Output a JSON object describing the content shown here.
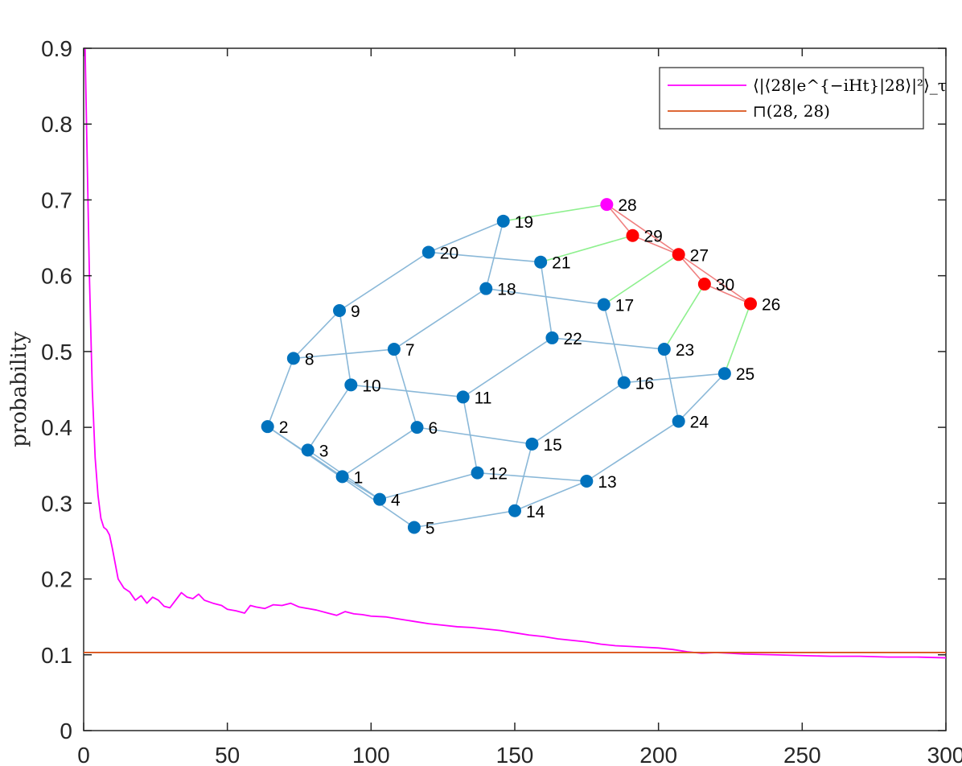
{
  "chart_data": {
    "type": "line",
    "title": "",
    "xlabel": "",
    "ylabel": "probability",
    "xlim": [
      0,
      300
    ],
    "ylim": [
      0,
      0.9
    ],
    "xticks": [
      "0",
      "50",
      "100",
      "150",
      "200",
      "250",
      "300"
    ],
    "yticks": [
      "0",
      "0.1",
      "0.2",
      "0.3",
      "0.4",
      "0.5",
      "0.6",
      "0.7",
      "0.8",
      "0.9"
    ],
    "grid": false,
    "legend_position": "top-right",
    "series": [
      {
        "name": "⟨|⟨28|e^{−iHt}|28⟩|²⟩_τ",
        "color": "#ff00ff",
        "x": [
          0.5,
          1,
          2,
          3,
          4,
          5,
          6,
          7,
          8,
          9,
          10,
          12,
          14,
          16,
          18,
          20,
          22,
          24,
          26,
          28,
          30,
          32,
          34,
          36,
          38,
          40,
          42,
          45,
          48,
          50,
          53,
          56,
          58,
          60,
          63,
          66,
          69,
          72,
          75,
          78,
          81,
          85,
          88,
          91,
          94,
          97,
          100,
          105,
          110,
          115,
          120,
          125,
          130,
          135,
          140,
          145,
          150,
          155,
          160,
          165,
          170,
          175,
          180,
          185,
          190,
          195,
          200,
          205,
          210,
          215,
          220,
          225,
          230,
          240,
          250,
          260,
          270,
          280,
          290,
          300
        ],
        "y": [
          0.9,
          0.8,
          0.6,
          0.45,
          0.36,
          0.31,
          0.28,
          0.268,
          0.265,
          0.258,
          0.24,
          0.2,
          0.188,
          0.183,
          0.172,
          0.178,
          0.168,
          0.176,
          0.172,
          0.164,
          0.162,
          0.172,
          0.182,
          0.176,
          0.174,
          0.18,
          0.172,
          0.168,
          0.165,
          0.16,
          0.158,
          0.155,
          0.165,
          0.163,
          0.161,
          0.166,
          0.165,
          0.168,
          0.163,
          0.161,
          0.159,
          0.155,
          0.152,
          0.157,
          0.154,
          0.153,
          0.151,
          0.15,
          0.147,
          0.144,
          0.141,
          0.139,
          0.137,
          0.136,
          0.134,
          0.132,
          0.129,
          0.126,
          0.124,
          0.121,
          0.119,
          0.117,
          0.114,
          0.112,
          0.111,
          0.11,
          0.109,
          0.107,
          0.104,
          0.102,
          0.103,
          0.102,
          0.101,
          0.1,
          0.099,
          0.098,
          0.098,
          0.097,
          0.097,
          0.096
        ]
      },
      {
        "name": "⊓(28, 28)",
        "color": "#d95319",
        "x": [
          0,
          300
        ],
        "y": [
          0.103,
          0.103
        ]
      }
    ]
  },
  "inset_graph": {
    "node_color": "#0072bd",
    "start_color": "#ff00ff",
    "target_color": "#ff0000",
    "edge_color": "#8ab8d8",
    "link_color": "#8ef08e",
    "red_edge_color": "#f08080",
    "nodes": [
      {
        "id": "1",
        "x": 90,
        "y": 0.335,
        "group": "normal"
      },
      {
        "id": "2",
        "x": 64,
        "y": 0.401,
        "group": "normal"
      },
      {
        "id": "3",
        "x": 78,
        "y": 0.37,
        "group": "normal"
      },
      {
        "id": "4",
        "x": 103,
        "y": 0.305,
        "group": "normal"
      },
      {
        "id": "5",
        "x": 115,
        "y": 0.268,
        "group": "normal"
      },
      {
        "id": "6",
        "x": 116,
        "y": 0.4,
        "group": "normal"
      },
      {
        "id": "7",
        "x": 108,
        "y": 0.503,
        "group": "normal"
      },
      {
        "id": "8",
        "x": 73,
        "y": 0.491,
        "group": "normal"
      },
      {
        "id": "9",
        "x": 89,
        "y": 0.554,
        "group": "normal"
      },
      {
        "id": "10",
        "x": 93,
        "y": 0.456,
        "group": "normal"
      },
      {
        "id": "11",
        "x": 132,
        "y": 0.44,
        "group": "normal"
      },
      {
        "id": "12",
        "x": 137,
        "y": 0.34,
        "group": "normal"
      },
      {
        "id": "13",
        "x": 175,
        "y": 0.329,
        "group": "normal"
      },
      {
        "id": "14",
        "x": 150,
        "y": 0.29,
        "group": "normal"
      },
      {
        "id": "15",
        "x": 156,
        "y": 0.378,
        "group": "normal"
      },
      {
        "id": "16",
        "x": 188,
        "y": 0.459,
        "group": "normal"
      },
      {
        "id": "17",
        "x": 181,
        "y": 0.562,
        "group": "normal"
      },
      {
        "id": "18",
        "x": 140,
        "y": 0.583,
        "group": "normal"
      },
      {
        "id": "19",
        "x": 146,
        "y": 0.672,
        "group": "normal"
      },
      {
        "id": "20",
        "x": 120,
        "y": 0.631,
        "group": "normal"
      },
      {
        "id": "21",
        "x": 159,
        "y": 0.618,
        "group": "normal"
      },
      {
        "id": "22",
        "x": 163,
        "y": 0.518,
        "group": "normal"
      },
      {
        "id": "23",
        "x": 202,
        "y": 0.503,
        "group": "normal"
      },
      {
        "id": "24",
        "x": 207,
        "y": 0.408,
        "group": "normal"
      },
      {
        "id": "25",
        "x": 223,
        "y": 0.471,
        "group": "normal"
      },
      {
        "id": "26",
        "x": 232,
        "y": 0.563,
        "group": "target"
      },
      {
        "id": "27",
        "x": 207,
        "y": 0.628,
        "group": "target"
      },
      {
        "id": "28",
        "x": 182,
        "y": 0.694,
        "group": "start"
      },
      {
        "id": "29",
        "x": 191,
        "y": 0.653,
        "group": "target"
      },
      {
        "id": "30",
        "x": 216,
        "y": 0.589,
        "group": "target"
      }
    ],
    "edges": [
      [
        "1",
        "2"
      ],
      [
        "2",
        "5"
      ],
      [
        "3",
        "4"
      ],
      [
        "1",
        "6"
      ],
      [
        "1",
        "4"
      ],
      [
        "4",
        "12"
      ],
      [
        "5",
        "14"
      ],
      [
        "2",
        "8"
      ],
      [
        "8",
        "9"
      ],
      [
        "8",
        "7"
      ],
      [
        "9",
        "10"
      ],
      [
        "3",
        "10"
      ],
      [
        "9",
        "20"
      ],
      [
        "7",
        "18"
      ],
      [
        "7",
        "6"
      ],
      [
        "6",
        "15"
      ],
      [
        "10",
        "11"
      ],
      [
        "11",
        "12"
      ],
      [
        "11",
        "22"
      ],
      [
        "12",
        "13"
      ],
      [
        "14",
        "13"
      ],
      [
        "14",
        "15"
      ],
      [
        "15",
        "16"
      ],
      [
        "13",
        "24"
      ],
      [
        "24",
        "25"
      ],
      [
        "16",
        "25"
      ],
      [
        "16",
        "17"
      ],
      [
        "17",
        "18"
      ],
      [
        "18",
        "19"
      ],
      [
        "19",
        "20"
      ],
      [
        "20",
        "21"
      ],
      [
        "21",
        "22"
      ],
      [
        "22",
        "23"
      ],
      [
        "23",
        "24"
      ]
    ],
    "link_edges": [
      [
        "19",
        "28"
      ],
      [
        "21",
        "29"
      ],
      [
        "17",
        "27"
      ],
      [
        "23",
        "30"
      ],
      [
        "25",
        "26"
      ]
    ],
    "red_edges": [
      [
        "28",
        "29"
      ],
      [
        "29",
        "27"
      ],
      [
        "27",
        "30"
      ],
      [
        "30",
        "26"
      ],
      [
        "28",
        "26"
      ]
    ]
  }
}
